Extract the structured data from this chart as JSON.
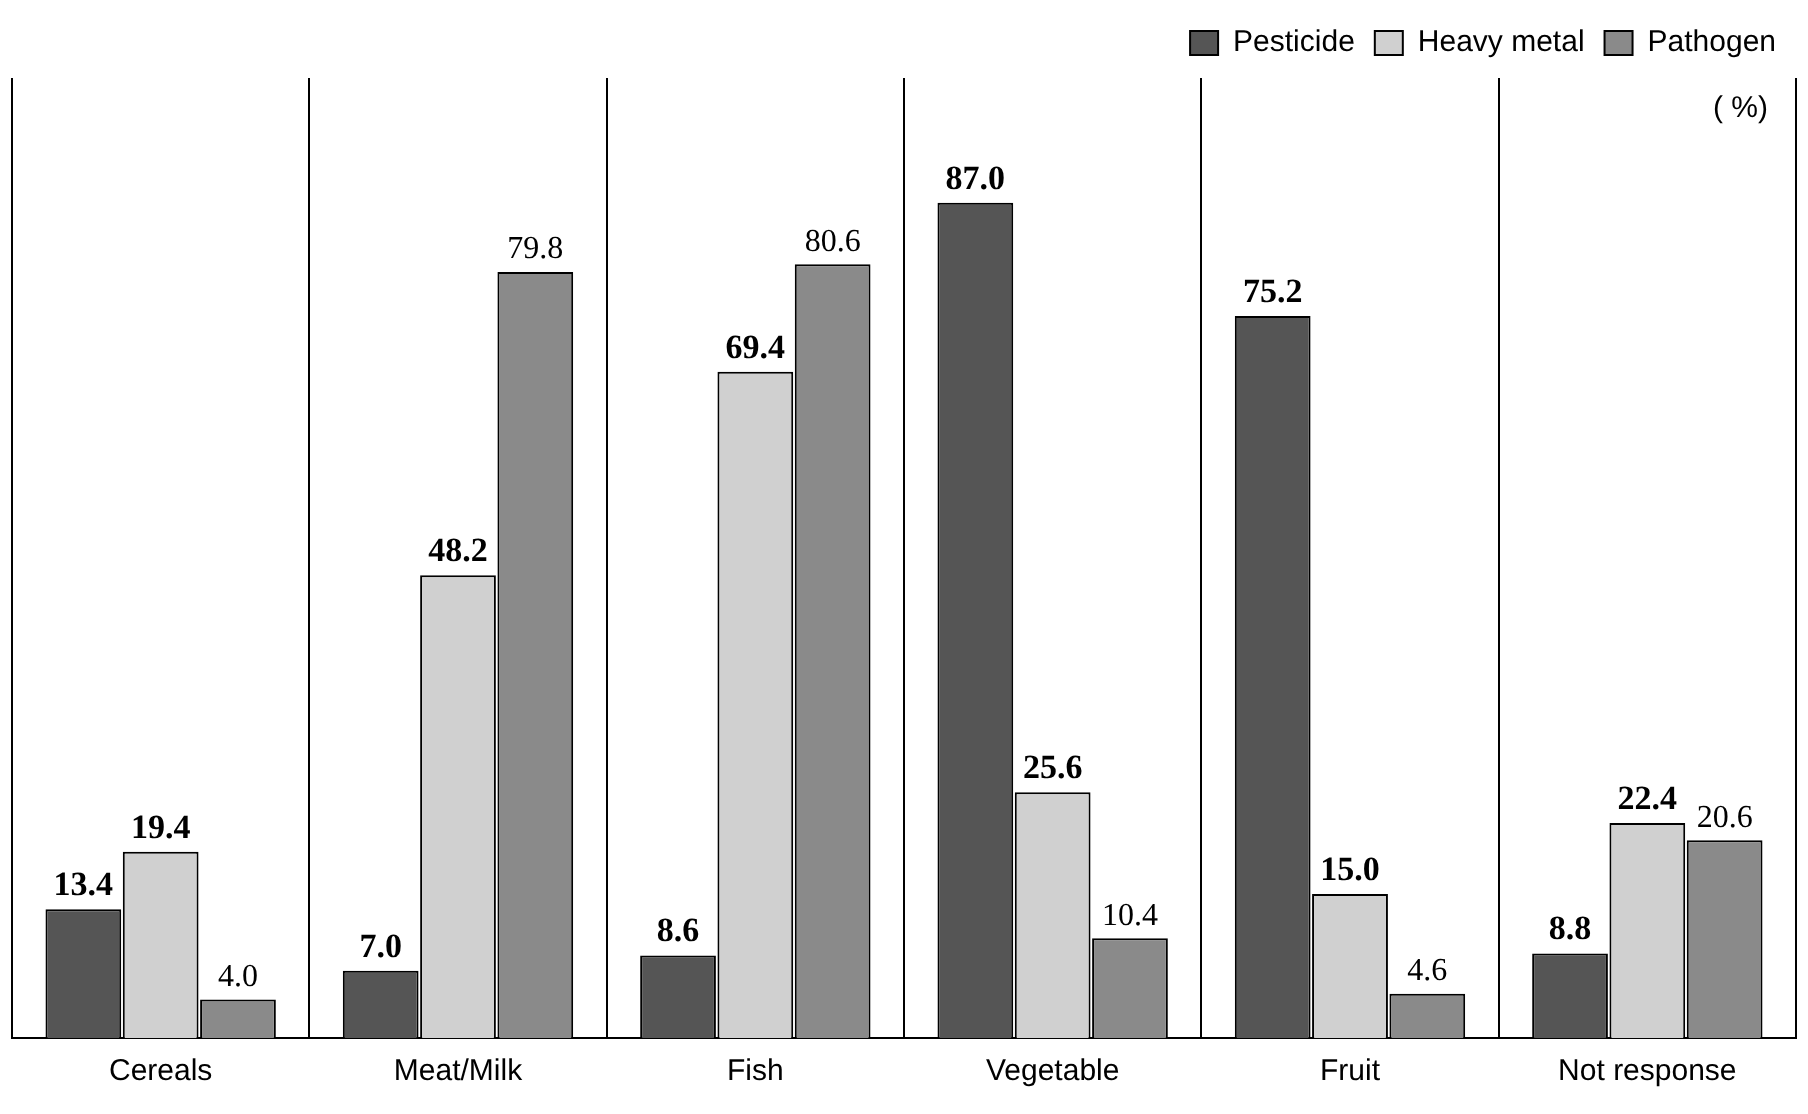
{
  "chart_data": {
    "type": "bar",
    "categories": [
      "Cereals",
      "Meat/Milk",
      "Fish",
      "Vegetable",
      "Fruit",
      "Not response"
    ],
    "series": [
      {
        "name": "Pesticide",
        "color": "#555555",
        "values": [
          13.4,
          7,
          8.6,
          87,
          75.2,
          8.8
        ],
        "value_labels": [
          "13.4",
          "7.0",
          "8.6",
          "87.0",
          "75.2",
          "8.8"
        ]
      },
      {
        "name": "Heavy metal",
        "color": "#d0d0d0",
        "values": [
          19.4,
          48.2,
          69.4,
          25.6,
          15,
          22.4
        ],
        "value_labels": [
          "19.4",
          "48.2",
          "69.4",
          "25.6",
          "15.0",
          "22.4"
        ]
      },
      {
        "name": "Pathogen",
        "color": "#8a8a8a",
        "values": [
          4,
          79.8,
          80.6,
          10.4,
          4.6,
          20.6
        ],
        "value_labels": [
          "4.0",
          "79.8",
          "80.6",
          "10.4",
          "4.6",
          "20.6"
        ]
      }
    ],
    "grid": "x",
    "legend": "top right",
    "annotations": [
      "( %)"
    ]
  }
}
